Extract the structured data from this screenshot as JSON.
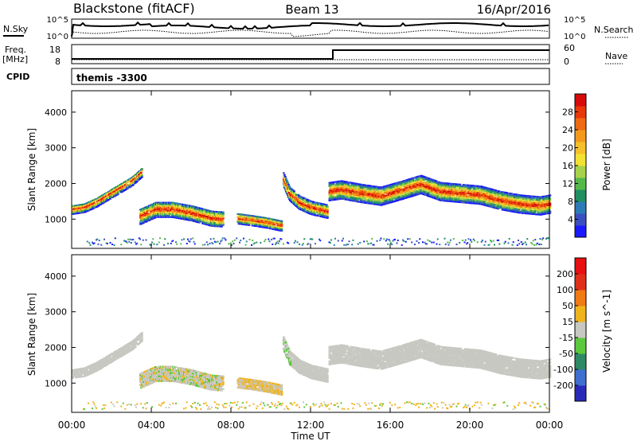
{
  "header": {
    "radar": "Blackstone (fitACF)",
    "beam": "Beam 13",
    "date": "16/Apr/2016"
  },
  "top_panels": {
    "nsky_label": "N.Sky",
    "nsearch_label": "N.Search",
    "left_ticks": [
      "10^5",
      "10^0"
    ],
    "right_ticks": [
      "10^5",
      "10^0"
    ],
    "freq_label_1": "Freq.",
    "freq_label_2": "[MHz]",
    "freq_ticks": [
      "18",
      "8"
    ],
    "nave_label": "Nave",
    "nave_ticks": [
      "60",
      "0"
    ],
    "cpid_label": "CPID",
    "cpid_value": "themis -3300"
  },
  "x_axis": {
    "label": "Time UT",
    "ticks": [
      "00:00",
      "04:00",
      "08:00",
      "12:00",
      "16:00",
      "20:00",
      "00:00"
    ]
  },
  "chart_data": [
    {
      "type": "heatmap",
      "title": "",
      "xlabel": "Time UT",
      "ylabel": "Slant Range [km]",
      "xlim": [
        0,
        24
      ],
      "ylim": [
        180,
        4600
      ],
      "yticks": [
        "1000",
        "2000",
        "3000",
        "4000"
      ],
      "colorbar": {
        "label": "Power [dB]",
        "ticks": [
          "28",
          "24",
          "20",
          "16",
          "12",
          "8",
          "4"
        ],
        "range": [
          0,
          30
        ],
        "colors": [
          "#1a1aff",
          "#3b4fc0",
          "#2c7bb6",
          "#1f8f62",
          "#55b94a",
          "#a7d34b",
          "#f2e234",
          "#f5c02a",
          "#f39a1e",
          "#ef6a12",
          "#e8380a",
          "#d80a0a"
        ]
      },
      "bands": [
        {
          "t": [
            0.0,
            0.6,
            1.2,
            1.8,
            2.4,
            3.0,
            3.5
          ],
          "r": [
            1250,
            1300,
            1450,
            1650,
            1850,
            2050,
            2300
          ],
          "w": 260
        },
        {
          "t": [
            3.4,
            4.2,
            5.0,
            6.0,
            7.0,
            7.6
          ],
          "r": [
            1050,
            1250,
            1250,
            1150,
            1000,
            980
          ],
          "w": 430
        },
        {
          "t": [
            8.3,
            9.0,
            9.8,
            10.3,
            10.5
          ],
          "r": [
            1000,
            950,
            880,
            820,
            800
          ],
          "w": 300
        },
        {
          "t": [
            10.6,
            10.9,
            11.4,
            12.0,
            12.8
          ],
          "r": [
            2100,
            1700,
            1450,
            1300,
            1200
          ],
          "w": 380
        },
        {
          "t": [
            12.9,
            13.5,
            14.5,
            15.5,
            16.5,
            17.5,
            18.5,
            19.5,
            20.5,
            21.5,
            22.5,
            23.5,
            24.0
          ],
          "r": [
            1750,
            1800,
            1700,
            1620,
            1780,
            1950,
            1750,
            1700,
            1650,
            1500,
            1400,
            1350,
            1400
          ],
          "w": 500
        }
      ],
      "ground_scatter": {
        "range": [
          250,
          450
        ],
        "t": [
          0.5,
          24.0
        ]
      }
    },
    {
      "type": "heatmap",
      "title": "",
      "xlabel": "Time UT",
      "ylabel": "Slant Range [km]",
      "xlim": [
        0,
        24
      ],
      "ylim": [
        180,
        4600
      ],
      "yticks": [
        "1000",
        "2000",
        "3000",
        "4000"
      ],
      "colorbar": {
        "label": "Velocity [m s^-1]",
        "ticks": [
          "200",
          "100",
          "50",
          "15",
          "-15",
          "-50",
          "-100",
          "-200"
        ],
        "colors": [
          "#2a2ab8",
          "#3e6fd0",
          "#2e8a66",
          "#5cc83d",
          "#c8c8c2",
          "#f0b41c",
          "#f07a14",
          "#e0301a",
          "#e81010"
        ]
      },
      "ground_scatter_color": "#c8c8c2"
    }
  ]
}
